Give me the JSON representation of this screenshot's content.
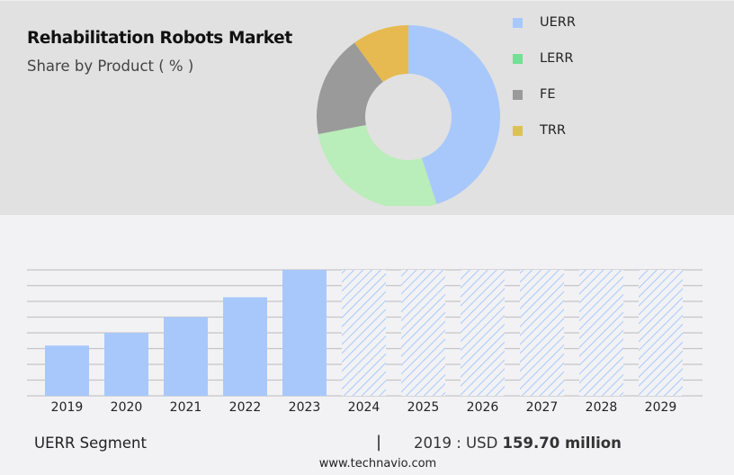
{
  "header": {
    "title": "Rehabilitation Robots Market",
    "subtitle": "Share by Product ( % )"
  },
  "legend": [
    {
      "label": "UERR",
      "color": "#a8c8fc"
    },
    {
      "label": "LERR",
      "color": "#72e095"
    },
    {
      "label": "FE",
      "color": "#9a9a9a"
    },
    {
      "label": "TRR",
      "color": "#dbc257"
    }
  ],
  "footer": {
    "segment": "UERR Segment",
    "separator": "|",
    "value_prefix": "2019 : USD",
    "value": "159.70 million",
    "url": "www.technavio.com"
  },
  "chart_data": [
    {
      "type": "pie",
      "title": "Rehabilitation Robots Market",
      "subtitle": "Share by Product ( % )",
      "donut": true,
      "categories": [
        "UERR",
        "LERR",
        "FE",
        "TRR"
      ],
      "values": [
        45,
        27,
        18,
        10
      ],
      "colors": [
        "#a8c8fc",
        "#b9edb9",
        "#9a9a9a",
        "#e6ba50"
      ],
      "legend_position": "right"
    },
    {
      "type": "bar",
      "title": "UERR Segment",
      "categories": [
        "2019",
        "2020",
        "2021",
        "2022",
        "2023",
        "2024",
        "2025",
        "2026",
        "2027",
        "2028",
        "2029"
      ],
      "values": [
        159.7,
        200,
        250,
        313,
        400,
        null,
        null,
        null,
        null,
        null,
        null
      ],
      "forecast": [
        false,
        false,
        false,
        false,
        false,
        true,
        true,
        true,
        true,
        true,
        true
      ],
      "annotation": "2019 : USD 159.70 million",
      "xlabel": "",
      "ylabel": "",
      "grid": true,
      "bar_color": "#a8c8fc"
    }
  ]
}
